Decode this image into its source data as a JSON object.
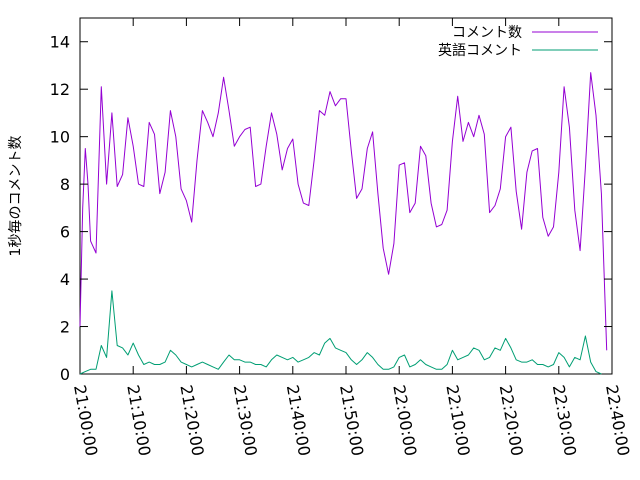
{
  "chart_data": {
    "type": "line",
    "ylabel": "1秒毎のコメント数",
    "xlabel": "",
    "xlim": [
      "21:00:00",
      "22:40:00"
    ],
    "ylim": [
      0,
      15
    ],
    "x_ticks": [
      "21:00:00",
      "21:10:00",
      "21:20:00",
      "21:30:00",
      "21:40:00",
      "21:50:00",
      "22:00:00",
      "22:10:00",
      "22:20:00",
      "22:30:00",
      "22:40:00"
    ],
    "y_ticks": [
      "0",
      "2",
      "4",
      "6",
      "8",
      "10",
      "12",
      "14"
    ],
    "grid": false,
    "legend_position": "top-right",
    "series": [
      {
        "name": "コメント数",
        "color": "#9400d3",
        "points": [
          [
            "21:00:00",
            2.0
          ],
          [
            "21:00:30",
            7.0
          ],
          [
            "21:01:00",
            9.5
          ],
          [
            "21:01:30",
            8.0
          ],
          [
            "21:02:00",
            5.6
          ],
          [
            "21:03:00",
            5.1
          ],
          [
            "21:04:00",
            12.1
          ],
          [
            "21:05:00",
            8.0
          ],
          [
            "21:06:00",
            11.0
          ],
          [
            "21:07:00",
            7.9
          ],
          [
            "21:08:00",
            8.4
          ],
          [
            "21:09:00",
            10.8
          ],
          [
            "21:10:00",
            9.6
          ],
          [
            "21:11:00",
            8.0
          ],
          [
            "21:12:00",
            7.9
          ],
          [
            "21:13:00",
            10.6
          ],
          [
            "21:14:00",
            10.1
          ],
          [
            "21:15:00",
            7.6
          ],
          [
            "21:16:00",
            8.5
          ],
          [
            "21:17:00",
            11.1
          ],
          [
            "21:18:00",
            10.0
          ],
          [
            "21:19:00",
            7.8
          ],
          [
            "21:20:00",
            7.3
          ],
          [
            "21:21:00",
            6.4
          ],
          [
            "21:22:00",
            9.0
          ],
          [
            "21:23:00",
            11.1
          ],
          [
            "21:24:00",
            10.6
          ],
          [
            "21:25:00",
            10.0
          ],
          [
            "21:26:00",
            11.0
          ],
          [
            "21:27:00",
            12.5
          ],
          [
            "21:28:00",
            11.1
          ],
          [
            "21:29:00",
            9.6
          ],
          [
            "21:30:00",
            10.0
          ],
          [
            "21:31:00",
            10.3
          ],
          [
            "21:32:00",
            10.4
          ],
          [
            "21:33:00",
            7.9
          ],
          [
            "21:34:00",
            8.0
          ],
          [
            "21:35:00",
            9.6
          ],
          [
            "21:36:00",
            11.0
          ],
          [
            "21:37:00",
            10.1
          ],
          [
            "21:38:00",
            8.6
          ],
          [
            "21:39:00",
            9.5
          ],
          [
            "21:40:00",
            9.9
          ],
          [
            "21:41:00",
            8.0
          ],
          [
            "21:42:00",
            7.2
          ],
          [
            "21:43:00",
            7.1
          ],
          [
            "21:44:00",
            9.0
          ],
          [
            "21:45:00",
            11.1
          ],
          [
            "21:46:00",
            10.9
          ],
          [
            "21:47:00",
            11.9
          ],
          [
            "21:48:00",
            11.3
          ],
          [
            "21:49:00",
            11.6
          ],
          [
            "21:50:00",
            11.6
          ],
          [
            "21:51:00",
            9.4
          ],
          [
            "21:52:00",
            7.4
          ],
          [
            "21:53:00",
            7.8
          ],
          [
            "21:54:00",
            9.5
          ],
          [
            "21:55:00",
            10.2
          ],
          [
            "21:56:00",
            7.6
          ],
          [
            "21:57:00",
            5.3
          ],
          [
            "21:58:00",
            4.2
          ],
          [
            "21:59:00",
            5.5
          ],
          [
            "22:00:00",
            8.8
          ],
          [
            "22:01:00",
            8.9
          ],
          [
            "22:02:00",
            6.8
          ],
          [
            "22:03:00",
            7.2
          ],
          [
            "22:04:00",
            9.6
          ],
          [
            "22:05:00",
            9.2
          ],
          [
            "22:06:00",
            7.2
          ],
          [
            "22:07:00",
            6.2
          ],
          [
            "22:08:00",
            6.3
          ],
          [
            "22:09:00",
            6.9
          ],
          [
            "22:10:00",
            9.8
          ],
          [
            "22:11:00",
            11.7
          ],
          [
            "22:12:00",
            9.8
          ],
          [
            "22:13:00",
            10.6
          ],
          [
            "22:14:00",
            10.0
          ],
          [
            "22:15:00",
            10.9
          ],
          [
            "22:16:00",
            10.1
          ],
          [
            "22:17:00",
            6.8
          ],
          [
            "22:18:00",
            7.1
          ],
          [
            "22:19:00",
            7.8
          ],
          [
            "22:20:00",
            10.0
          ],
          [
            "22:21:00",
            10.4
          ],
          [
            "22:22:00",
            7.7
          ],
          [
            "22:23:00",
            6.1
          ],
          [
            "22:24:00",
            8.5
          ],
          [
            "22:25:00",
            9.4
          ],
          [
            "22:26:00",
            9.5
          ],
          [
            "22:27:00",
            6.6
          ],
          [
            "22:28:00",
            5.8
          ],
          [
            "22:29:00",
            6.2
          ],
          [
            "22:30:00",
            8.5
          ],
          [
            "22:31:00",
            12.1
          ],
          [
            "22:32:00",
            10.4
          ],
          [
            "22:33:00",
            6.9
          ],
          [
            "22:34:00",
            5.2
          ],
          [
            "22:35:00",
            8.7
          ],
          [
            "22:36:00",
            12.7
          ],
          [
            "22:37:00",
            10.9
          ],
          [
            "22:38:00",
            7.6
          ],
          [
            "22:39:00",
            1.0
          ]
        ]
      },
      {
        "name": "英語コメント",
        "color": "#009e73",
        "points": [
          [
            "21:00:00",
            0.0
          ],
          [
            "21:01:00",
            0.1
          ],
          [
            "21:02:00",
            0.2
          ],
          [
            "21:03:00",
            0.2
          ],
          [
            "21:04:00",
            1.2
          ],
          [
            "21:05:00",
            0.7
          ],
          [
            "21:06:00",
            3.5
          ],
          [
            "21:07:00",
            1.2
          ],
          [
            "21:08:00",
            1.1
          ],
          [
            "21:09:00",
            0.8
          ],
          [
            "21:10:00",
            1.3
          ],
          [
            "21:11:00",
            0.8
          ],
          [
            "21:12:00",
            0.4
          ],
          [
            "21:13:00",
            0.5
          ],
          [
            "21:14:00",
            0.4
          ],
          [
            "21:15:00",
            0.4
          ],
          [
            "21:16:00",
            0.5
          ],
          [
            "21:17:00",
            1.0
          ],
          [
            "21:18:00",
            0.8
          ],
          [
            "21:19:00",
            0.5
          ],
          [
            "21:20:00",
            0.4
          ],
          [
            "21:21:00",
            0.3
          ],
          [
            "21:22:00",
            0.4
          ],
          [
            "21:23:00",
            0.5
          ],
          [
            "21:24:00",
            0.4
          ],
          [
            "21:25:00",
            0.3
          ],
          [
            "21:26:00",
            0.2
          ],
          [
            "21:27:00",
            0.5
          ],
          [
            "21:28:00",
            0.8
          ],
          [
            "21:29:00",
            0.6
          ],
          [
            "21:30:00",
            0.6
          ],
          [
            "21:31:00",
            0.5
          ],
          [
            "21:32:00",
            0.5
          ],
          [
            "21:33:00",
            0.4
          ],
          [
            "21:34:00",
            0.4
          ],
          [
            "21:35:00",
            0.3
          ],
          [
            "21:36:00",
            0.6
          ],
          [
            "21:37:00",
            0.8
          ],
          [
            "21:38:00",
            0.7
          ],
          [
            "21:39:00",
            0.6
          ],
          [
            "21:40:00",
            0.7
          ],
          [
            "21:41:00",
            0.5
          ],
          [
            "21:42:00",
            0.6
          ],
          [
            "21:43:00",
            0.7
          ],
          [
            "21:44:00",
            0.9
          ],
          [
            "21:45:00",
            0.8
          ],
          [
            "21:46:00",
            1.3
          ],
          [
            "21:47:00",
            1.5
          ],
          [
            "21:48:00",
            1.1
          ],
          [
            "21:49:00",
            1.0
          ],
          [
            "21:50:00",
            0.9
          ],
          [
            "21:51:00",
            0.6
          ],
          [
            "21:52:00",
            0.4
          ],
          [
            "21:53:00",
            0.6
          ],
          [
            "21:54:00",
            0.9
          ],
          [
            "21:55:00",
            0.7
          ],
          [
            "21:56:00",
            0.4
          ],
          [
            "21:57:00",
            0.2
          ],
          [
            "21:58:00",
            0.2
          ],
          [
            "21:59:00",
            0.3
          ],
          [
            "22:00:00",
            0.7
          ],
          [
            "22:01:00",
            0.8
          ],
          [
            "22:02:00",
            0.3
          ],
          [
            "22:03:00",
            0.4
          ],
          [
            "22:04:00",
            0.6
          ],
          [
            "22:05:00",
            0.4
          ],
          [
            "22:06:00",
            0.3
          ],
          [
            "22:07:00",
            0.2
          ],
          [
            "22:08:00",
            0.2
          ],
          [
            "22:09:00",
            0.4
          ],
          [
            "22:10:00",
            1.0
          ],
          [
            "22:11:00",
            0.6
          ],
          [
            "22:12:00",
            0.7
          ],
          [
            "22:13:00",
            0.8
          ],
          [
            "22:14:00",
            1.1
          ],
          [
            "22:15:00",
            1.0
          ],
          [
            "22:16:00",
            0.6
          ],
          [
            "22:17:00",
            0.7
          ],
          [
            "22:18:00",
            1.1
          ],
          [
            "22:19:00",
            1.0
          ],
          [
            "22:20:00",
            1.5
          ],
          [
            "22:21:00",
            1.1
          ],
          [
            "22:22:00",
            0.6
          ],
          [
            "22:23:00",
            0.5
          ],
          [
            "22:24:00",
            0.5
          ],
          [
            "22:25:00",
            0.6
          ],
          [
            "22:26:00",
            0.4
          ],
          [
            "22:27:00",
            0.4
          ],
          [
            "22:28:00",
            0.3
          ],
          [
            "22:29:00",
            0.4
          ],
          [
            "22:30:00",
            0.9
          ],
          [
            "22:31:00",
            0.7
          ],
          [
            "22:32:00",
            0.3
          ],
          [
            "22:33:00",
            0.7
          ],
          [
            "22:34:00",
            0.6
          ],
          [
            "22:35:00",
            1.6
          ],
          [
            "22:36:00",
            0.5
          ],
          [
            "22:37:00",
            0.1
          ],
          [
            "22:38:00",
            0.0
          ]
        ]
      }
    ]
  }
}
